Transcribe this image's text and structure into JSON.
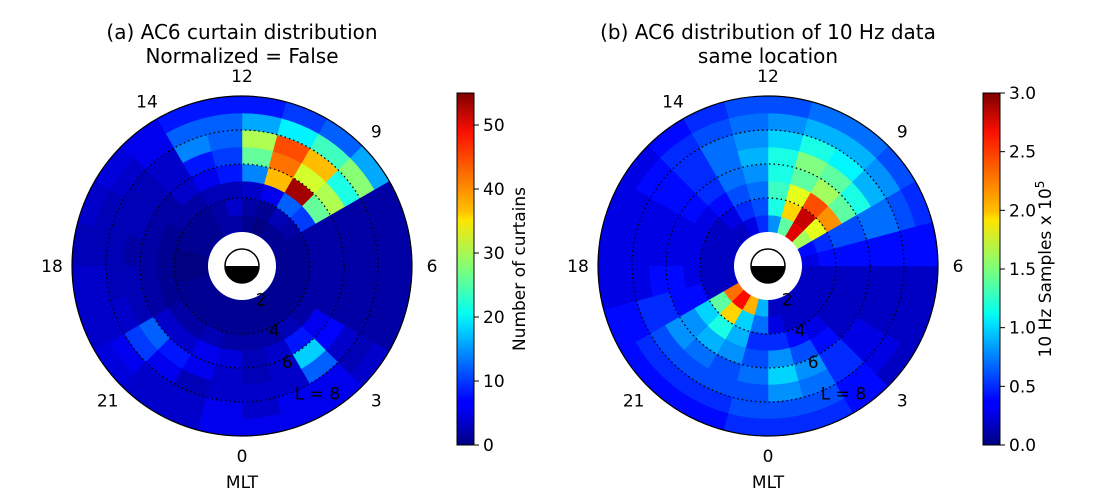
{
  "chart_data": [
    {
      "type": "heatmap",
      "projection": "polar",
      "title": "(a) AC6 curtain distribution",
      "subtitle": "Normalized = False",
      "xlabel": "MLT",
      "mlt_ticks": [
        "12",
        "9",
        "6",
        "3",
        "0",
        "21",
        "18",
        "14"
      ],
      "l_ticks": [
        "2",
        "4",
        "6",
        "L = 8"
      ],
      "r_range": [
        2,
        10
      ],
      "l_shells": [
        4,
        6,
        8
      ],
      "colorbar": {
        "label": "Number of curtains",
        "range": [
          0,
          55
        ],
        "ticks": [
          "0",
          "10",
          "20",
          "30",
          "40",
          "50"
        ],
        "colormap": "jet"
      },
      "grid": {
        "mlt_bins": 24,
        "l_bins": [
          2,
          3,
          4,
          5,
          6,
          7,
          8,
          9,
          10
        ],
        "values": [
          [
            1,
            1,
            1,
            1,
            1,
            1,
            1,
            1,
            1,
            1,
            0,
            1,
            2,
            2,
            1,
            1,
            1,
            0,
            0,
            1,
            1,
            1,
            1,
            1
          ],
          [
            1,
            1,
            1,
            1,
            1,
            1,
            1,
            1,
            2,
            3,
            1,
            2,
            4,
            2,
            1,
            1,
            1,
            0,
            0,
            1,
            1,
            1,
            1,
            1
          ],
          [
            2,
            2,
            3,
            2,
            2,
            2,
            2,
            2,
            10,
            12,
            6,
            4,
            3,
            3,
            2,
            2,
            1,
            1,
            1,
            1,
            2,
            2,
            3,
            2
          ],
          [
            3,
            4,
            8,
            6,
            2,
            2,
            2,
            2,
            26,
            53,
            38,
            14,
            8,
            6,
            4,
            2,
            2,
            2,
            2,
            2,
            4,
            4,
            6,
            5
          ],
          [
            3,
            4,
            18,
            7,
            2,
            2,
            2,
            2,
            30,
            32,
            42,
            26,
            10,
            8,
            4,
            3,
            3,
            2,
            3,
            3,
            12,
            8,
            6,
            4
          ],
          [
            4,
            4,
            12,
            4,
            2,
            2,
            2,
            2,
            22,
            38,
            44,
            30,
            12,
            14,
            4,
            3,
            3,
            3,
            3,
            4,
            10,
            6,
            3,
            4
          ],
          [
            4,
            6,
            6,
            3,
            2,
            2,
            2,
            2,
            28,
            24,
            20,
            16,
            12,
            12,
            6,
            4,
            3,
            3,
            4,
            4,
            6,
            4,
            4,
            6
          ],
          [
            6,
            6,
            6,
            4,
            2,
            2,
            2,
            2,
            16,
            12,
            10,
            8,
            8,
            8,
            6,
            5,
            4,
            3,
            4,
            4,
            5,
            4,
            4,
            6
          ]
        ]
      }
    },
    {
      "type": "heatmap",
      "projection": "polar",
      "title": "(b) AC6 distribution of 10 Hz data",
      "subtitle": "same location",
      "xlabel": "MLT",
      "mlt_ticks": [
        "12",
        "9",
        "6",
        "3",
        "0",
        "21",
        "18",
        "14"
      ],
      "l_ticks": [
        "2",
        "4",
        "6",
        "L = 8"
      ],
      "r_range": [
        2,
        10
      ],
      "l_shells": [
        4,
        6,
        8
      ],
      "colorbar": {
        "label": "10 Hz Samples x 10",
        "label_superscript": "5",
        "range": [
          0,
          3
        ],
        "ticks": [
          "0.0",
          "0.5",
          "1.0",
          "1.5",
          "2.0",
          "2.5",
          "3.0"
        ],
        "colormap": "jet"
      },
      "grid": {
        "mlt_bins": 24,
        "l_bins": [
          2,
          3,
          4,
          5,
          6,
          7,
          8,
          9,
          10
        ],
        "values": [
          [
            0.2,
            0.2,
            0.2,
            0.2,
            0.2,
            0.2,
            0.3,
            0.4,
            1.6,
            2.7,
            1.4,
            0.8,
            0.5,
            0.3,
            0.2,
            0.2,
            0.2,
            0.2,
            0.2,
            0.2,
            2.3,
            2.6,
            2.1,
            0.9
          ],
          [
            0.3,
            0.2,
            0.2,
            0.2,
            0.2,
            0.2,
            0.4,
            0.5,
            1.8,
            2.8,
            2.0,
            1.2,
            0.6,
            0.5,
            0.3,
            0.2,
            0.2,
            0.2,
            0.2,
            0.2,
            1.4,
            2.0,
            1.0,
            0.7
          ],
          [
            0.5,
            0.4,
            0.3,
            0.2,
            0.2,
            0.2,
            0.4,
            0.6,
            2.2,
            2.4,
            1.8,
            1.3,
            0.7,
            0.6,
            0.4,
            0.3,
            0.3,
            0.3,
            0.3,
            0.4,
            1.0,
            1.2,
            0.9,
            0.5
          ],
          [
            0.8,
            0.6,
            0.4,
            0.2,
            0.2,
            0.2,
            0.4,
            0.6,
            1.4,
            1.6,
            1.4,
            1.2,
            0.8,
            0.7,
            0.5,
            0.4,
            0.3,
            0.3,
            0.4,
            0.4,
            0.8,
            0.9,
            0.8,
            0.6
          ],
          [
            1.0,
            0.8,
            0.5,
            0.3,
            0.2,
            0.2,
            0.4,
            0.7,
            1.2,
            1.4,
            1.5,
            1.2,
            0.9,
            0.7,
            0.5,
            0.4,
            0.3,
            0.3,
            0.4,
            0.5,
            0.8,
            0.7,
            0.6,
            0.7
          ],
          [
            0.8,
            0.7,
            0.5,
            0.3,
            0.2,
            0.2,
            0.4,
            0.7,
            0.9,
            1.1,
            1.2,
            1.0,
            0.8,
            0.7,
            0.5,
            0.4,
            0.3,
            0.3,
            0.3,
            0.5,
            0.6,
            0.6,
            0.6,
            0.6
          ],
          [
            0.6,
            0.6,
            0.4,
            0.3,
            0.2,
            0.2,
            0.4,
            0.6,
            0.8,
            0.9,
            0.9,
            0.8,
            0.7,
            0.6,
            0.5,
            0.4,
            0.3,
            0.3,
            0.3,
            0.4,
            0.5,
            0.5,
            0.5,
            0.6
          ],
          [
            0.5,
            0.5,
            0.4,
            0.2,
            0.2,
            0.2,
            0.4,
            0.5,
            0.6,
            0.7,
            0.7,
            0.6,
            0.6,
            0.5,
            0.4,
            0.3,
            0.3,
            0.3,
            0.3,
            0.4,
            0.4,
            0.4,
            0.4,
            0.5
          ]
        ]
      }
    }
  ]
}
